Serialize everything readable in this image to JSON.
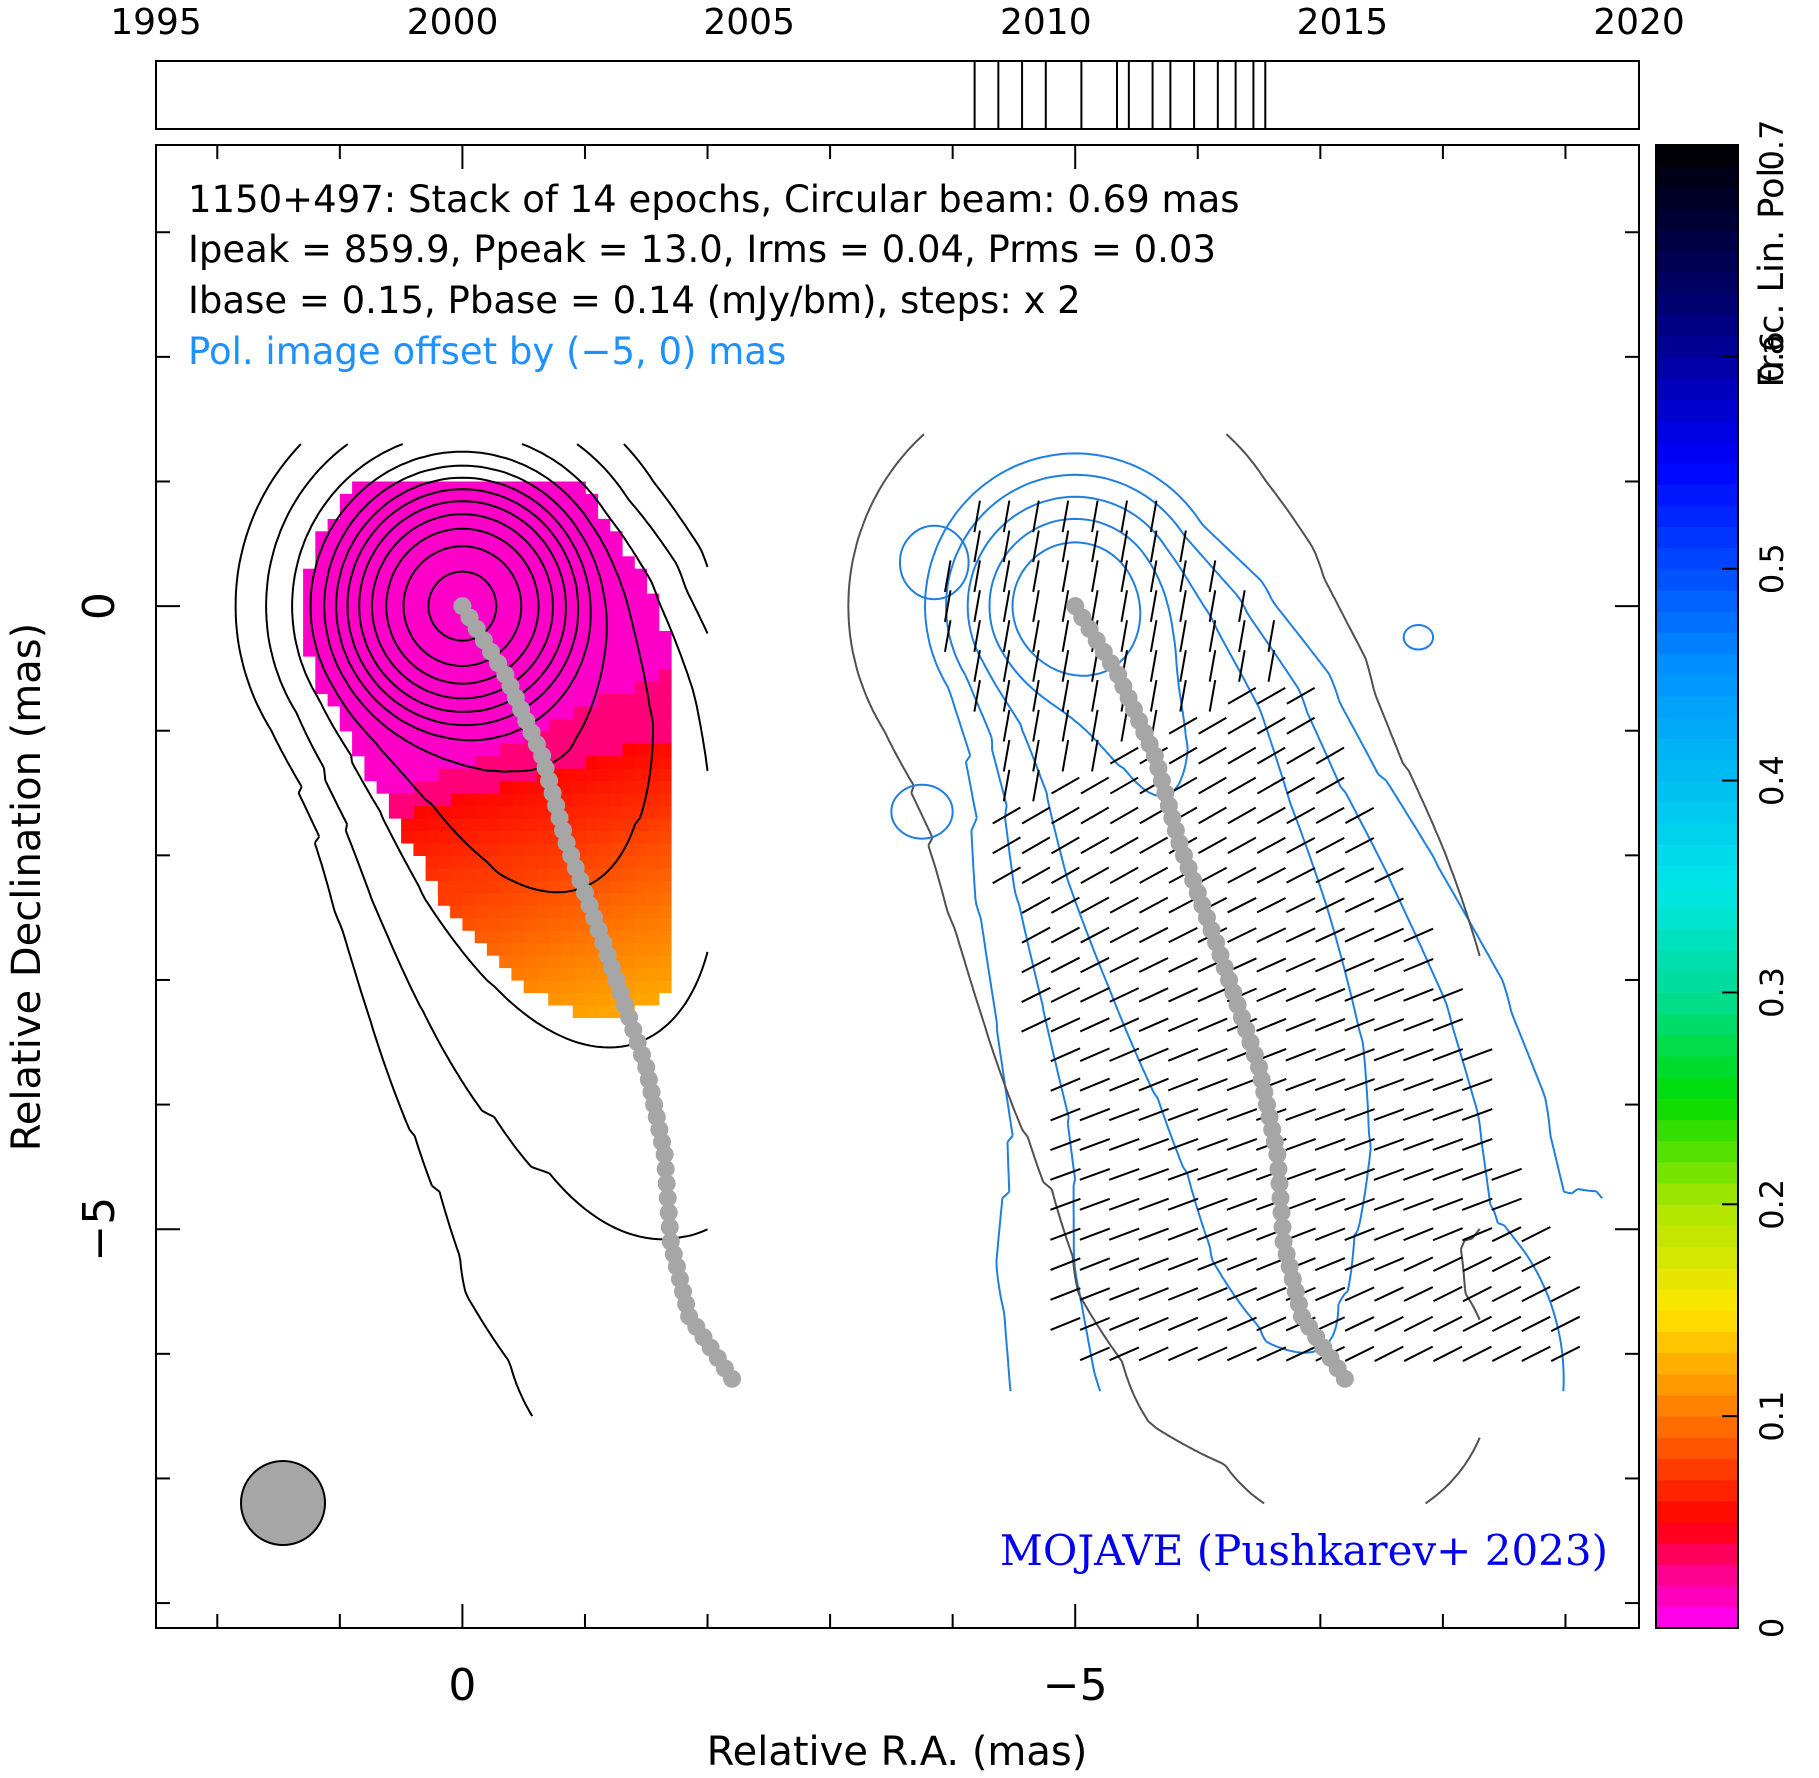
{
  "chart_data": {
    "type": "contour-map",
    "source": "1150+497",
    "info_lines": [
      "1150+497: Stack of 14 epochs, Circular beam: 0.69 mas",
      "Ipeak = 859.9, Ppeak = 13.0, Irms = 0.04, Prms = 0.03",
      "Ibase = 0.15, Pbase = 0.14 (mJy/bm), steps: x 2"
    ],
    "offset_note": "Pol. image offset by (−5, 0) mas",
    "credit": "MOJAVE (Pushkarev+ 2023)",
    "xlabel": "Relative R.A. (mas)",
    "ylabel": "Relative Declination (mas)",
    "xlim": [
      2.5,
      -9.6
    ],
    "ylim": [
      -8.2,
      3.7
    ],
    "x_tick_labels": [
      {
        "value": 0,
        "label": "0"
      },
      {
        "value": -5,
        "label": "−5"
      }
    ],
    "y_tick_labels": [
      {
        "value": 0,
        "label": "0"
      },
      {
        "value": -5,
        "label": "−5"
      }
    ],
    "beam_diameter_mas": 0.69,
    "colorbar": {
      "label": "Frac. Lin. Pol.",
      "range": [
        0,
        0.7
      ],
      "tick_labels": [
        "0",
        "0.1",
        "0.2",
        "0.3",
        "0.4",
        "0.5",
        "0.6",
        "0.7"
      ]
    },
    "timeline": {
      "range": [
        1995,
        2020
      ],
      "tick_labels": [
        "1995",
        "2000",
        "2005",
        "2010",
        "2015",
        "2020"
      ],
      "epochs": [
        2008.8,
        2009.2,
        2009.6,
        2010.0,
        2010.6,
        2011.2,
        2011.4,
        2011.8,
        2012.1,
        2012.5,
        2012.9,
        2013.2,
        2013.5,
        2013.7
      ]
    },
    "ridge_line": [
      [
        0.0,
        0.0
      ],
      [
        -0.35,
        -0.55
      ],
      [
        -0.65,
        -1.2
      ],
      [
        -0.85,
        -1.9
      ],
      [
        -1.15,
        -2.7
      ],
      [
        -1.5,
        -3.7
      ],
      [
        -1.65,
        -4.4
      ],
      [
        -1.7,
        -5.1
      ],
      [
        -1.85,
        -5.7
      ],
      [
        -2.2,
        -6.2
      ]
    ]
  },
  "colors": {
    "stokes_i_contour": "#000000",
    "pol_contour": "#1e7fe0",
    "outer_pol_contour": "#505050",
    "ridge": "#a6a6a6",
    "offset_note": "#1e90ff",
    "credit": "#0000ee"
  }
}
